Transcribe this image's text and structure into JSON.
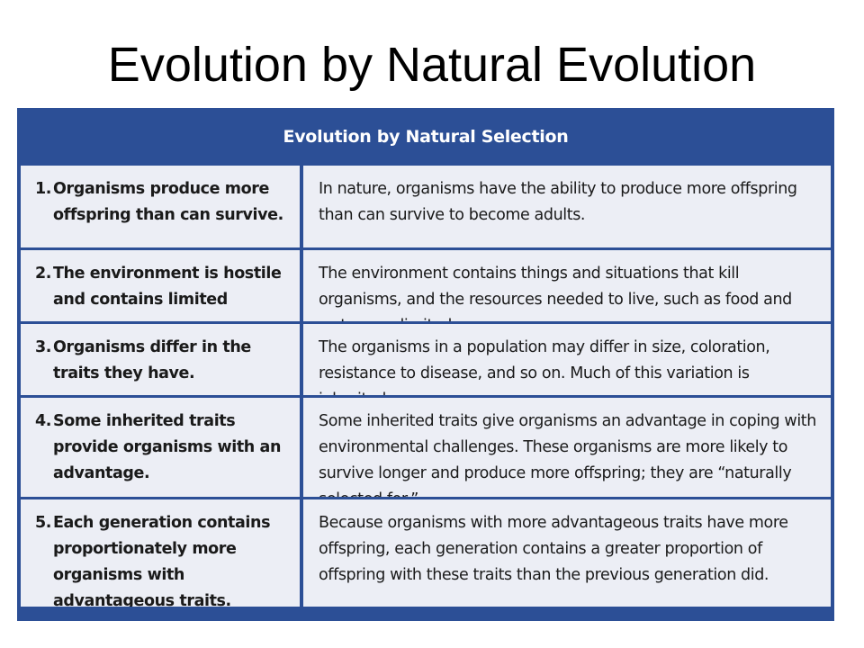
{
  "slide": {
    "title": "Evolution by Natural Evolution"
  },
  "table": {
    "header": "Evolution by Natural Selection",
    "rows": [
      {
        "num": "1.",
        "principle": "Organisms produce more offspring than can survive.",
        "explanation": "In nature, organisms have the ability to produce more offspring than can survive to become adults."
      },
      {
        "num": "2.",
        "principle": "The environment is hostile and contains limited resources.",
        "explanation": "The environment contains things and situations that kill organisms, and the resources needed to live, such as food and water, are limited."
      },
      {
        "num": "3.",
        "principle": "Organisms differ in the traits they have.",
        "explanation": "The organisms in a population may differ in size, coloration, resistance to disease, and so on. Much of this variation is inherited."
      },
      {
        "num": "4.",
        "principle": "Some inherited traits provide organisms with an advantage.",
        "explanation": "Some inherited traits give organisms an advantage in coping with environmental challenges. These organisms are more likely to survive longer and produce more offspring; they are “naturally selected for.”"
      },
      {
        "num": "5.",
        "principle": "Each generation contains proportionately more organisms with advantageous traits.",
        "explanation": "Because organisms with more advantageous traits have more offspring, each generation contains a greater proportion of offspring with these traits than the previous generation did."
      }
    ]
  }
}
